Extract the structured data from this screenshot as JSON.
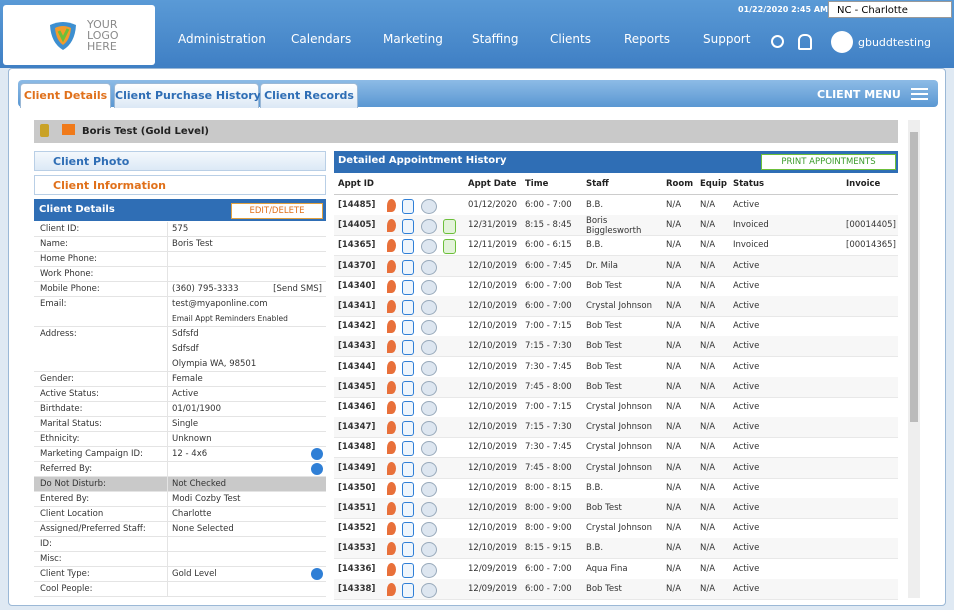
{
  "header": {
    "logo": [
      "YOUR",
      "LOGO",
      "HERE"
    ],
    "datetime": "01/22/2020 2:45 AM",
    "location": "NC - Charlotte",
    "nav": [
      "Administration",
      "Calendars",
      "Marketing",
      "Staffing",
      "Clients",
      "Reports",
      "Support"
    ],
    "user": "gbuddtesting"
  },
  "tabs": [
    "Client Details",
    "Client Purchase History",
    "Client Records"
  ],
  "client_menu": "CLIENT MENU",
  "client_name": "Boris Test (Gold Level)",
  "left": {
    "client_photo": "Client Photo",
    "client_information": "Client Information",
    "details_title": "Client Details",
    "edit_button": "EDIT/DELETE",
    "fields": [
      {
        "label": "Client ID:",
        "lines": [
          "575"
        ]
      },
      {
        "label": "Name:",
        "lines": [
          "Boris Test"
        ]
      },
      {
        "label": "Home Phone:"
      },
      {
        "label": "Work Phone:"
      },
      {
        "label": "Mobile Phone:",
        "lines": [
          "(360) 795-3333"
        ],
        "action": "[Send SMS]"
      },
      {
        "label": "Email:",
        "lines": [
          "test@myaponline.com",
          "Email Appt Reminders Enabled"
        ]
      },
      {
        "label": "Address:",
        "lines": [
          "Sdfsfd",
          "Sdfsdf",
          "Olympia WA, 98501"
        ]
      },
      {
        "label": "Gender:",
        "lines": [
          "Female"
        ]
      },
      {
        "label": "Active Status:",
        "lines": [
          "Active"
        ]
      },
      {
        "label": "Birthdate:",
        "lines": [
          "01/01/1900"
        ]
      },
      {
        "label": "Marital Status:",
        "lines": [
          "Single"
        ]
      },
      {
        "label": "Ethnicity:",
        "lines": [
          "Unknown"
        ]
      },
      {
        "label": "Marketing Campaign ID:",
        "lines": [
          "12 - 4x6"
        ],
        "info": true
      },
      {
        "label": "Referred By:",
        "info": true
      },
      {
        "label": "Do Not Disturb:",
        "lines": [
          "Not Checked"
        ],
        "highlight": true
      },
      {
        "label": "Entered By:",
        "lines": [
          "Modi Cozby Test"
        ]
      },
      {
        "label": "Client Location",
        "lines": [
          "Charlotte"
        ]
      },
      {
        "label": "Assigned/Preferred Staff:",
        "lines": [
          "None Selected"
        ]
      },
      {
        "label": "ID:"
      },
      {
        "label": "Misc:"
      },
      {
        "label": "Client Type:",
        "lines": [
          "Gold Level"
        ],
        "info": true
      },
      {
        "label": "Cool People:"
      }
    ]
  },
  "appointments": {
    "title": "Detailed Appointment History",
    "print_button": "PRINT APPOINTMENTS",
    "columns": [
      "Appt ID",
      "Appt Date",
      "Time",
      "Staff",
      "Room",
      "Equip",
      "Status",
      "Invoice"
    ],
    "rows": [
      {
        "id": "[14485]",
        "date": "01/12/2020",
        "time": "6:00 - 7:00",
        "staff": "B.B.",
        "room": "N/A",
        "equip": "N/A",
        "status": "Active"
      },
      {
        "id": "[14405]",
        "date": "12/31/2019",
        "time": "8:15 - 8:45",
        "staff": "Boris Bigglesworth",
        "room": "N/A",
        "equip": "N/A",
        "status": "Invoiced",
        "invoice": "[00014405]"
      },
      {
        "id": "[14365]",
        "date": "12/11/2019",
        "time": "6:00 - 6:15",
        "staff": "B.B.",
        "room": "N/A",
        "equip": "N/A",
        "status": "Invoiced",
        "invoice": "[00014365]"
      },
      {
        "id": "[14370]",
        "date": "12/10/2019",
        "time": "6:00 - 7:45",
        "staff": "Dr. Mila",
        "room": "N/A",
        "equip": "N/A",
        "status": "Active"
      },
      {
        "id": "[14340]",
        "date": "12/10/2019",
        "time": "6:00 - 7:00",
        "staff": "Bob Test",
        "room": "N/A",
        "equip": "N/A",
        "status": "Active"
      },
      {
        "id": "[14341]",
        "date": "12/10/2019",
        "time": "6:00 - 7:00",
        "staff": "Crystal Johnson",
        "room": "N/A",
        "equip": "N/A",
        "status": "Active"
      },
      {
        "id": "[14342]",
        "date": "12/10/2019",
        "time": "7:00 - 7:15",
        "staff": "Bob Test",
        "room": "N/A",
        "equip": "N/A",
        "status": "Active"
      },
      {
        "id": "[14343]",
        "date": "12/10/2019",
        "time": "7:15 - 7:30",
        "staff": "Bob Test",
        "room": "N/A",
        "equip": "N/A",
        "status": "Active"
      },
      {
        "id": "[14344]",
        "date": "12/10/2019",
        "time": "7:30 - 7:45",
        "staff": "Bob Test",
        "room": "N/A",
        "equip": "N/A",
        "status": "Active"
      },
      {
        "id": "[14345]",
        "date": "12/10/2019",
        "time": "7:45 - 8:00",
        "staff": "Bob Test",
        "room": "N/A",
        "equip": "N/A",
        "status": "Active"
      },
      {
        "id": "[14346]",
        "date": "12/10/2019",
        "time": "7:00 - 7:15",
        "staff": "Crystal Johnson",
        "room": "N/A",
        "equip": "N/A",
        "status": "Active"
      },
      {
        "id": "[14347]",
        "date": "12/10/2019",
        "time": "7:15 - 7:30",
        "staff": "Crystal Johnson",
        "room": "N/A",
        "equip": "N/A",
        "status": "Active"
      },
      {
        "id": "[14348]",
        "date": "12/10/2019",
        "time": "7:30 - 7:45",
        "staff": "Crystal Johnson",
        "room": "N/A",
        "equip": "N/A",
        "status": "Active"
      },
      {
        "id": "[14349]",
        "date": "12/10/2019",
        "time": "7:45 - 8:00",
        "staff": "Crystal Johnson",
        "room": "N/A",
        "equip": "N/A",
        "status": "Active"
      },
      {
        "id": "[14350]",
        "date": "12/10/2019",
        "time": "8:00 - 8:15",
        "staff": "B.B.",
        "room": "N/A",
        "equip": "N/A",
        "status": "Active"
      },
      {
        "id": "[14351]",
        "date": "12/10/2019",
        "time": "8:00 - 9:00",
        "staff": "Bob Test",
        "room": "N/A",
        "equip": "N/A",
        "status": "Active"
      },
      {
        "id": "[14352]",
        "date": "12/10/2019",
        "time": "8:00 - 9:00",
        "staff": "Crystal Johnson",
        "room": "N/A",
        "equip": "N/A",
        "status": "Active"
      },
      {
        "id": "[14353]",
        "date": "12/10/2019",
        "time": "8:15 - 9:15",
        "staff": "B.B.",
        "room": "N/A",
        "equip": "N/A",
        "status": "Active"
      },
      {
        "id": "[14336]",
        "date": "12/09/2019",
        "time": "6:00 - 7:00",
        "staff": "Aqua Fina",
        "room": "N/A",
        "equip": "N/A",
        "status": "Active"
      },
      {
        "id": "[14338]",
        "date": "12/09/2019",
        "time": "6:00 - 7:00",
        "staff": "Bob Test",
        "room": "N/A",
        "equip": "N/A",
        "status": "Active"
      }
    ]
  }
}
